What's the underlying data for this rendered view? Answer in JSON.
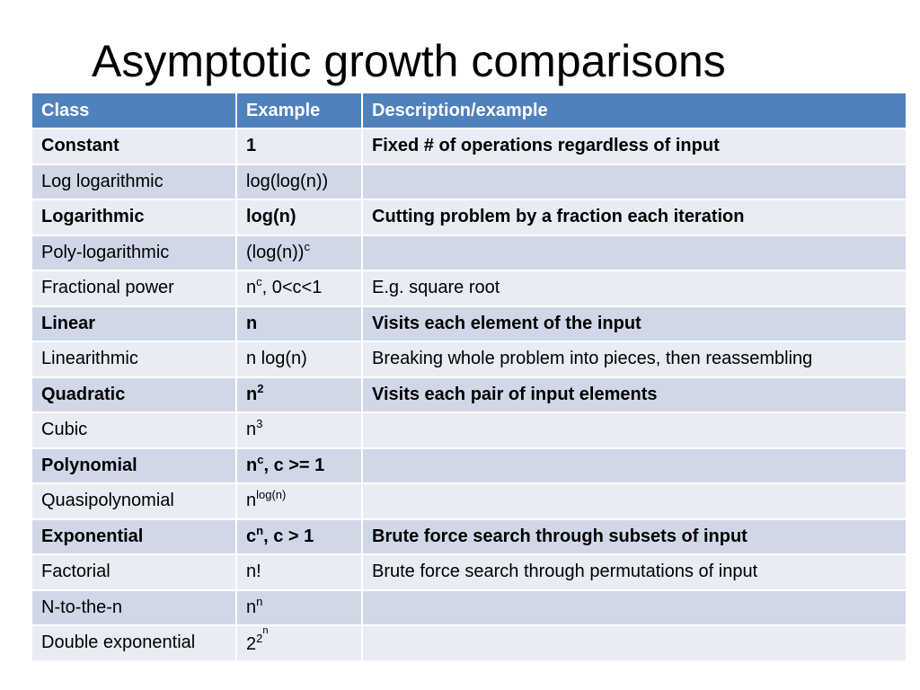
{
  "title": "Asymptotic growth comparisons",
  "table": {
    "headers": [
      "Class",
      "Example",
      "Description/example"
    ],
    "rows": [
      {
        "cls": "Constant",
        "ex": "1",
        "desc": "Fixed # of operations regardless of input",
        "bold": true
      },
      {
        "cls": "Log logarithmic",
        "ex": "log(log(n))",
        "desc": "",
        "bold": false
      },
      {
        "cls": "Logarithmic",
        "ex": "log(n)",
        "desc": "Cutting problem by a fraction each iteration",
        "bold": true
      },
      {
        "cls": "Poly-logarithmic",
        "ex": "(log(n))",
        "ex_sup": "c",
        "desc": "",
        "bold": false
      },
      {
        "cls": "Fractional power",
        "ex": "n",
        "ex_sup": "c",
        "ex_after": ", 0<c<1",
        "desc": "E.g. square root",
        "bold": false
      },
      {
        "cls": "Linear",
        "ex": "n",
        "desc": "Visits each element of the input",
        "bold": true
      },
      {
        "cls": "Linearithmic",
        "ex": "n log(n)",
        "desc": "Breaking whole problem into pieces, then reassembling",
        "bold": false
      },
      {
        "cls": "Quadratic",
        "ex": "n",
        "ex_sup": "2",
        "desc": "Visits each pair of input elements",
        "bold": true
      },
      {
        "cls": "Cubic",
        "ex": "n",
        "ex_sup": "3",
        "desc": "",
        "bold": false
      },
      {
        "cls": "Polynomial",
        "ex": "n",
        "ex_sup": "c",
        "ex_after": ", c >= 1",
        "desc": "",
        "bold": true
      },
      {
        "cls": "Quasipolynomial",
        "ex": "n",
        "ex_sup": "log(n)",
        "desc": "",
        "bold": false
      },
      {
        "cls": "Exponential",
        "ex": "c",
        "ex_sup": "n",
        "ex_after": ", c > 1",
        "desc": "Brute force search through subsets of input",
        "bold": true
      },
      {
        "cls": "Factorial",
        "ex": "n!",
        "desc": "Brute force search through permutations of input",
        "bold": false
      },
      {
        "cls": "N-to-the-n",
        "ex": "n",
        "ex_sup": "n",
        "desc": "",
        "bold": false
      },
      {
        "cls": "Double exponential",
        "ex": "2",
        "ex_sup": "2",
        "ex_sup2": "n",
        "desc": "",
        "bold": false
      }
    ]
  }
}
